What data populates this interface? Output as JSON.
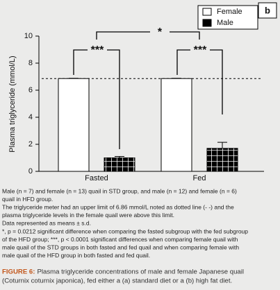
{
  "chart_data": {
    "type": "bar",
    "panel_label": "b",
    "y_label": "Plasma triglyceride (mmol/L)",
    "categories": [
      "Fasted",
      "Fed"
    ],
    "series": [
      {
        "name": "Female",
        "color": "#ffffff",
        "values": [
          6.86,
          6.86
        ],
        "errors": [
          0.02,
          0.02
        ]
      },
      {
        "name": "Male",
        "color": "#000000",
        "values": [
          1.0,
          1.7
        ],
        "errors": [
          0.1,
          0.45
        ]
      }
    ],
    "ylim": [
      0,
      10
    ],
    "yticks": [
      0,
      2,
      4,
      6,
      8,
      10
    ],
    "reference_line": 6.86,
    "annotations": [
      {
        "text": "*"
      },
      {
        "text": "***"
      },
      {
        "text": "***"
      }
    ]
  },
  "caption": {
    "notes": [
      "Male (n = 7) and female (n = 13) quail in STD group, and male (n = 12) and female (n = 6)",
      "quail in HFD group.",
      "The triglyceride meter had an upper limit of 6.86 mmol/L noted as dotted line (- -) and the",
      "plasma triglyceride levels in the female quail were above this limit.",
      "Data represented as means ± s.d.",
      "*, p = 0.0212 significant difference when comparing the fasted subgroup with the fed subgroup",
      "of the HFD group; ***, p < 0.0001 significant differences when comparing female quail with",
      "male quail of the STD groups in both fasted and fed quail and when comparing female with",
      "male quail of the HFD group in both fasted and fed quail."
    ],
    "figure_label": "FIGURE 6:",
    "figure_title": [
      "Plasma triglyceride concentrations of male and female Japanese quail",
      "(Coturnix coturnix japonica), fed either a (a) standard diet or a (b) high fat diet."
    ]
  }
}
